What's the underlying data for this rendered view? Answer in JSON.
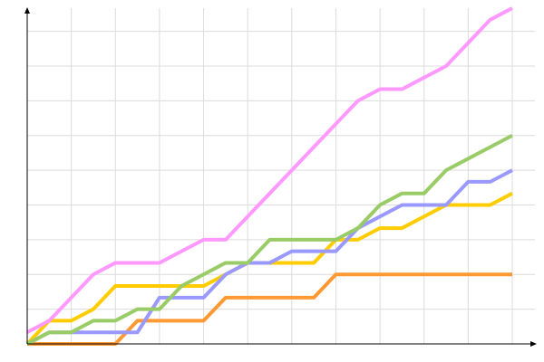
{
  "chart_data": {
    "type": "line",
    "title": "",
    "xlabel": "",
    "ylabel": "",
    "x": [
      0,
      1,
      2,
      3,
      4,
      5,
      6,
      7,
      8,
      9,
      10,
      11,
      12,
      13,
      14,
      15,
      16,
      17,
      18,
      19,
      20,
      21,
      22
    ],
    "xlim": [
      0,
      22
    ],
    "ylim": [
      0,
      29
    ],
    "x_grid_step": 2,
    "y_grid_step": 3,
    "grid": true,
    "legend": "none",
    "series": [
      {
        "color": "#ff9933",
        "values": [
          0,
          0,
          0,
          0,
          0,
          2,
          2,
          2,
          2,
          4,
          4,
          4,
          4,
          4,
          6,
          6,
          6,
          6,
          6,
          6,
          6,
          6,
          6
        ]
      },
      {
        "color": "#ffcc00",
        "values": [
          0,
          2,
          2,
          3,
          5,
          5,
          5,
          5,
          5,
          6,
          7,
          7,
          7,
          7,
          9,
          9,
          10,
          10,
          11,
          12,
          12,
          12,
          13
        ]
      },
      {
        "color": "#9999ff",
        "values": [
          0,
          1,
          1,
          1,
          1,
          1,
          4,
          4,
          4,
          6,
          7,
          7,
          8,
          8,
          8,
          10,
          11,
          12,
          12,
          12,
          14,
          14,
          15
        ]
      },
      {
        "color": "#99cc66",
        "values": [
          0,
          1,
          1,
          2,
          2,
          3,
          3,
          5,
          6,
          7,
          7,
          9,
          9,
          9,
          9,
          10,
          12,
          13,
          13,
          15,
          16,
          17,
          18
        ]
      },
      {
        "color": "#ff99ff",
        "values": [
          1,
          2,
          4,
          6,
          7,
          7,
          7,
          8,
          9,
          9,
          11,
          13,
          15,
          17,
          19,
          21,
          22,
          22,
          23,
          24,
          26,
          28,
          29
        ]
      }
    ]
  }
}
